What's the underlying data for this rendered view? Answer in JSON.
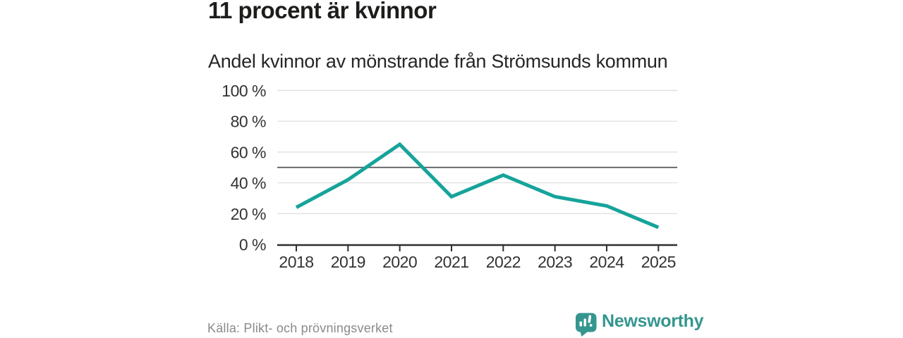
{
  "chart": {
    "title": "11 procent är kvinnor",
    "subtitle": "Andel kvinnor av mönstrande från Strömsunds kommun",
    "source": "Källa: Plikt- och prövningsverket"
  },
  "logo": {
    "text": "Newsworthy",
    "icon": "newsworthy-badge-bar-chart-icon"
  },
  "chart_data": {
    "type": "line",
    "title": "11 procent är kvinnor",
    "subtitle": "Andel kvinnor av mönstrande från Strömsunds kommun",
    "categories": [
      "2018",
      "2019",
      "2020",
      "2021",
      "2022",
      "2023",
      "2024",
      "2025"
    ],
    "values": [
      24,
      42,
      65,
      31,
      45,
      31,
      25,
      11
    ],
    "xlabel": "",
    "ylabel": "",
    "ylim": [
      0,
      100
    ],
    "ytick_values": [
      0,
      20,
      40,
      60,
      80,
      100
    ],
    "ytick_labels": [
      "0 %",
      "20 %",
      "40 %",
      "60 %",
      "80 %",
      "100 %"
    ],
    "reference_line": 50,
    "grid": true,
    "legend": "none",
    "colors": {
      "line": "#16a39a",
      "grid": "#e1e1e1",
      "reference": "#55565a",
      "axis": "#2e2e2e",
      "tick_label": "#333333",
      "title": "#1d1d1b",
      "source": "#8a8a8a",
      "logo": "#35968f"
    }
  }
}
